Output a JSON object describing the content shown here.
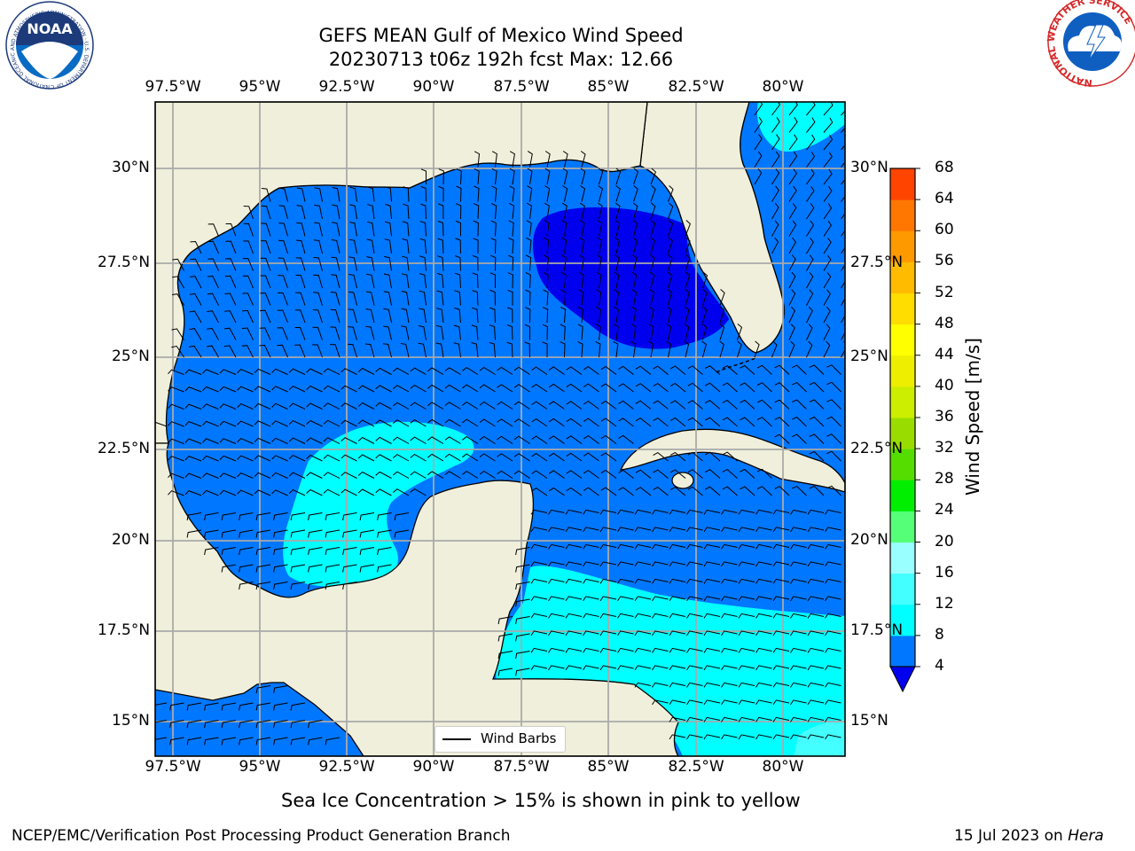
{
  "title": {
    "line1": "GEFS MEAN Gulf of Mexico Wind Speed",
    "line2": "20230713 t06z 192h fcst   Max: 12.66"
  },
  "map": {
    "lon_ticks": [
      "97.5°W",
      "95°W",
      "92.5°W",
      "90°W",
      "87.5°W",
      "85°W",
      "82.5°W",
      "80°W"
    ],
    "lat_ticks": [
      "30°N",
      "27.5°N",
      "25°N",
      "22.5°N",
      "20°N",
      "17.5°N",
      "15°N"
    ],
    "legend_label": "Wind Barbs",
    "land_color": "#efefdb",
    "caption": "Sea Ice Concentration > 15% is shown in pink to yellow"
  },
  "colorbar": {
    "label": "Wind Speed [m/s]",
    "ticks": [
      "68",
      "64",
      "60",
      "56",
      "52",
      "48",
      "44",
      "40",
      "36",
      "32",
      "28",
      "24",
      "20",
      "16",
      "12",
      "8",
      "4"
    ],
    "colors_bottom_to_top": [
      "#0077ff",
      "#00ffff",
      "#44ffff",
      "#99ffff",
      "#55ff77",
      "#00ee00",
      "#55dd00",
      "#99dd00",
      "#ccee00",
      "#eeee00",
      "#ffff00",
      "#ffdd00",
      "#ffbb00",
      "#ff9900",
      "#ff7700",
      "#ff4400",
      "#ff0000"
    ],
    "under_color": "#0000ee"
  },
  "footer": {
    "left": "NCEP/EMC/Verification Post Processing Product Generation Branch",
    "right_prefix": "15 Jul 2023 on ",
    "right_host": "Hera"
  },
  "logos": {
    "noaa_text": "NOAA",
    "noaa_ring": "NATIONAL OCEANIC AND ATMOSPHERIC ADMINISTRATION · U.S. DEPARTMENT OF COMMERCE",
    "nws_ring": "NATIONAL WEATHER SERVICE"
  }
}
